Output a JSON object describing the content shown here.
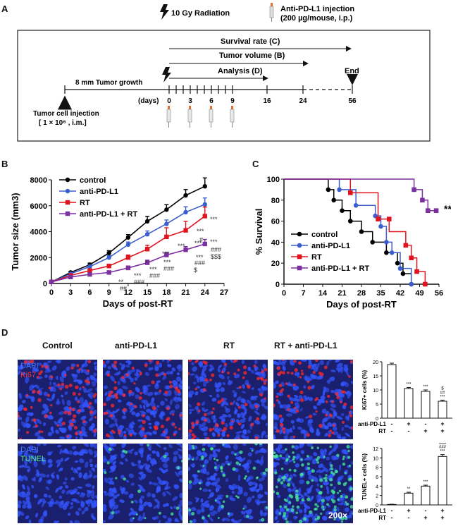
{
  "panelA": {
    "letter": "A",
    "radiation_label": "10 Gy Radiation",
    "injection_label_1": "Anti-PD-L1 injection",
    "injection_label_2": "(200 µg/mouse, i.p.)",
    "survival_label": "Survival rate (C)",
    "tumor_volume_label": "Tumor volume (B)",
    "analysis_label": "Analysis (D)",
    "end_label": "End",
    "growth_label": "8 mm Tumor growth",
    "days_label": "(days)",
    "day_ticks": [
      "0",
      "3",
      "6",
      "9",
      "16",
      "24",
      "56"
    ],
    "cell_injection_1": "Tumor cell injection",
    "cell_injection_2": "[ 1 × 10⁶ , i.m.]"
  },
  "panelB": {
    "letter": "B",
    "sig_notes": [
      "***",
      "***",
      "#",
      "***",
      "###",
      "$$$",
      "*",
      "***",
      "***",
      "***",
      "***",
      "###",
      "$",
      "**",
      "##",
      "***",
      "###",
      "***",
      "###",
      "***",
      "###"
    ]
  },
  "panelC": {
    "letter": "C",
    "sig": "***"
  },
  "panelD": {
    "letter": "D",
    "columns": [
      "Control",
      "anti-PD-L1",
      "RT",
      "RT + anti-PD-L1"
    ],
    "row1_labels": [
      "DAPI",
      "Ki67"
    ],
    "row2_labels": [
      "DAPI",
      "TUNEL"
    ],
    "magnification": "200×",
    "colors": {
      "dapi": "#3355ff",
      "ki67": "#ff2a2a",
      "tunel": "#44ee99"
    }
  },
  "chart_data": [
    {
      "type": "line",
      "title": "",
      "xlabel": "Days of post-RT",
      "ylabel": "Tumor size (mm3)",
      "xlim": [
        0,
        27
      ],
      "ylim": [
        0,
        8000
      ],
      "xticks": [
        0,
        3,
        6,
        9,
        12,
        15,
        18,
        21,
        24,
        27
      ],
      "yticks": [
        0,
        2000,
        4000,
        6000,
        8000
      ],
      "ytick_labels": [
        "0",
        "2000",
        "4000",
        "6000",
        "8000"
      ],
      "x": [
        0,
        3,
        6,
        9,
        12,
        15,
        18,
        21,
        24
      ],
      "series": [
        {
          "name": "control",
          "color": "#000000",
          "marker": "circle",
          "values": [
            120,
            850,
            1450,
            2350,
            3550,
            4800,
            5700,
            6800,
            7500
          ],
          "err": [
            40,
            80,
            120,
            180,
            220,
            380,
            380,
            450,
            650
          ]
        },
        {
          "name": "anti-PD-L1",
          "color": "#3a5fcd",
          "marker": "circle",
          "values": [
            120,
            750,
            1300,
            2000,
            3000,
            3800,
            4600,
            5500,
            6100
          ],
          "err": [
            40,
            80,
            120,
            150,
            200,
            250,
            300,
            420,
            500
          ]
        },
        {
          "name": "RT",
          "color": "#e0141e",
          "marker": "square",
          "values": [
            120,
            620,
            1000,
            1350,
            2000,
            2650,
            3600,
            4100,
            5200
          ],
          "err": [
            40,
            70,
            90,
            120,
            200,
            300,
            700,
            700,
            700
          ]
        },
        {
          "name": "anti-PD-L1 + RT",
          "color": "#7b2fa0",
          "marker": "square",
          "values": [
            120,
            500,
            700,
            850,
            1200,
            1600,
            2200,
            2600,
            3050
          ],
          "err": [
            30,
            60,
            80,
            100,
            150,
            200,
            200,
            250,
            350
          ]
        }
      ]
    },
    {
      "type": "line",
      "title": "",
      "xlabel": "Days of post-RT",
      "ylabel": "% Survival",
      "xlim": [
        0,
        56
      ],
      "ylim": [
        0,
        100
      ],
      "xticks": [
        0,
        7,
        14,
        21,
        28,
        35,
        42,
        49,
        56
      ],
      "yticks": [
        0,
        20,
        40,
        60,
        80,
        100
      ],
      "series": [
        {
          "name": "control",
          "color": "#000000",
          "marker": "circle",
          "steps": [
            [
              0,
              100
            ],
            [
              16,
              100
            ],
            [
              16,
              90
            ],
            [
              18,
              90
            ],
            [
              18,
              80
            ],
            [
              21,
              80
            ],
            [
              21,
              70
            ],
            [
              24,
              70
            ],
            [
              24,
              60
            ],
            [
              28,
              60
            ],
            [
              28,
              50
            ],
            [
              32,
              50
            ],
            [
              32,
              40
            ],
            [
              37,
              40
            ],
            [
              37,
              30
            ],
            [
              41,
              30
            ],
            [
              41,
              20
            ],
            [
              43,
              20
            ],
            [
              43,
              10
            ],
            [
              46,
              10
            ],
            [
              46,
              0
            ]
          ],
          "marks": [
            [
              16,
              90
            ],
            [
              18,
              80
            ],
            [
              21,
              70
            ],
            [
              24,
              60
            ],
            [
              28,
              50
            ],
            [
              32,
              40
            ],
            [
              37,
              30
            ],
            [
              41,
              20
            ],
            [
              43,
              10
            ],
            [
              46,
              0
            ]
          ]
        },
        {
          "name": "anti-PD-L1",
          "color": "#3a5fcd",
          "marker": "circle",
          "steps": [
            [
              0,
              100
            ],
            [
              20,
              100
            ],
            [
              20,
              90
            ],
            [
              26,
              90
            ],
            [
              26,
              75
            ],
            [
              33,
              75
            ],
            [
              33,
              65
            ],
            [
              35,
              65
            ],
            [
              35,
              55
            ],
            [
              37,
              55
            ],
            [
              37,
              40
            ],
            [
              39,
              40
            ],
            [
              39,
              30
            ],
            [
              42,
              30
            ],
            [
              42,
              15
            ],
            [
              46,
              15
            ],
            [
              46,
              0
            ]
          ],
          "marks": [
            [
              20,
              90
            ],
            [
              26,
              75
            ],
            [
              33,
              65
            ],
            [
              35,
              55
            ],
            [
              37,
              40
            ],
            [
              39,
              30
            ],
            [
              42,
              15
            ],
            [
              46,
              0
            ]
          ]
        },
        {
          "name": "RT",
          "color": "#e0141e",
          "marker": "square",
          "steps": [
            [
              0,
              100
            ],
            [
              24,
              100
            ],
            [
              24,
              87
            ],
            [
              34,
              87
            ],
            [
              34,
              62
            ],
            [
              38,
              62
            ],
            [
              38,
              50
            ],
            [
              44,
              50
            ],
            [
              44,
              37
            ],
            [
              46,
              37
            ],
            [
              46,
              25
            ],
            [
              48,
              25
            ],
            [
              48,
              12
            ],
            [
              51,
              12
            ],
            [
              51,
              0
            ]
          ],
          "marks": [
            [
              24,
              87
            ],
            [
              34,
              62
            ],
            [
              38,
              62
            ],
            [
              44,
              37
            ],
            [
              46,
              25
            ],
            [
              48,
              12
            ],
            [
              51,
              0
            ]
          ]
        },
        {
          "name": "anti-PD-L1 + RT",
          "color": "#7b2fa0",
          "marker": "square",
          "steps": [
            [
              0,
              100
            ],
            [
              47,
              100
            ],
            [
              47,
              90
            ],
            [
              50,
              90
            ],
            [
              50,
              80
            ],
            [
              52,
              80
            ],
            [
              52,
              70
            ],
            [
              55,
              70
            ]
          ],
          "marks": [
            [
              47,
              90
            ],
            [
              50,
              80
            ],
            [
              52,
              70
            ],
            [
              55,
              70
            ]
          ]
        }
      ]
    },
    {
      "type": "bar",
      "title": "",
      "xlabel": "",
      "ylabel": "Ki67+ cells (%)",
      "ylim": [
        0,
        20
      ],
      "yticks": [
        0,
        5,
        10,
        15,
        20
      ],
      "categories": [
        "control",
        "anti-PD-L1",
        "RT",
        "anti-PD-L1 + RT"
      ],
      "values": [
        19,
        10.5,
        9.5,
        6
      ],
      "err": [
        0.5,
        0.4,
        0.5,
        0.4
      ],
      "annotations": [
        "",
        "***",
        "***",
        "$\n##\n***"
      ],
      "row_labels": [
        {
          "name": "anti-PD-L1",
          "signs": [
            "-",
            "+",
            "-",
            "+"
          ]
        },
        {
          "name": "RT",
          "signs": [
            "-",
            "-",
            "+",
            "+"
          ]
        }
      ]
    },
    {
      "type": "bar",
      "title": "",
      "xlabel": "",
      "ylabel": "TUNEL+ cells (%)",
      "ylim": [
        0,
        12
      ],
      "yticks": [
        0,
        2,
        4,
        6,
        8,
        10,
        12
      ],
      "categories": [
        "control",
        "anti-PD-L1",
        "RT",
        "anti-PD-L1 + RT"
      ],
      "values": [
        0.1,
        2.5,
        4,
        10.3
      ],
      "err": [
        0.05,
        0.2,
        0.2,
        0.4
      ],
      "annotations": [
        "",
        "**",
        "***",
        "$$$\n###\n***"
      ],
      "row_labels": [
        {
          "name": "anti-PD-L1",
          "signs": [
            "-",
            "+",
            "-",
            "+"
          ]
        },
        {
          "name": "RT",
          "signs": [
            "-",
            "-",
            "+",
            "+"
          ]
        }
      ]
    }
  ]
}
